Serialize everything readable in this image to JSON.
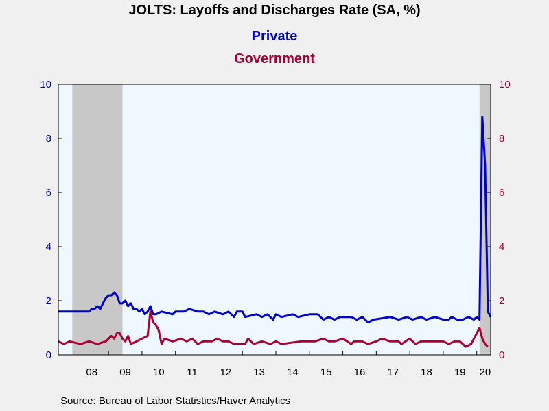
{
  "chart_data": {
    "type": "line",
    "title": "JOLTS: Layoffs and Discharges Rate (SA, %)",
    "source": "Source:  Bureau of Labor Statistics/Haver Analytics",
    "x_start": "2007-07",
    "x_end": "2020-06",
    "y_left_range": [
      0,
      10
    ],
    "y_right_range": [
      0,
      10
    ],
    "y_ticks": [
      "0",
      "2",
      "4",
      "6",
      "8",
      "10"
    ],
    "x_tick_labels": [
      {
        "label": "08",
        "date": "2008-07"
      },
      {
        "label": "09",
        "date": "2009-07"
      },
      {
        "label": "10",
        "date": "2010-07"
      },
      {
        "label": "11",
        "date": "2011-07"
      },
      {
        "label": "12",
        "date": "2012-07"
      },
      {
        "label": "13",
        "date": "2013-07"
      },
      {
        "label": "14",
        "date": "2014-07"
      },
      {
        "label": "15",
        "date": "2015-07"
      },
      {
        "label": "16",
        "date": "2016-07"
      },
      {
        "label": "17",
        "date": "2017-07"
      },
      {
        "label": "18",
        "date": "2018-07"
      },
      {
        "label": "19",
        "date": "2019-07"
      },
      {
        "label": "20",
        "date": "2020-04"
      }
    ],
    "recessions": [
      {
        "start": "2007-12",
        "end": "2009-06"
      },
      {
        "start": "2020-02",
        "end": "2020-06"
      }
    ],
    "grid": false,
    "series": [
      {
        "name": "Private",
        "axis": "left",
        "color": "#0000cc",
        "points": [
          [
            "2007-07",
            1.6
          ],
          [
            "2008-01",
            1.6
          ],
          [
            "2008-06",
            1.6
          ],
          [
            "2008-07",
            1.7
          ],
          [
            "2008-08",
            1.7
          ],
          [
            "2008-09",
            1.8
          ],
          [
            "2008-10",
            1.7
          ],
          [
            "2008-11",
            1.9
          ],
          [
            "2008-12",
            2.1
          ],
          [
            "2009-01",
            2.2
          ],
          [
            "2009-02",
            2.2
          ],
          [
            "2009-03",
            2.3
          ],
          [
            "2009-04",
            2.2
          ],
          [
            "2009-05",
            1.9
          ],
          [
            "2009-06",
            1.9
          ],
          [
            "2009-07",
            2.0
          ],
          [
            "2009-08",
            1.8
          ],
          [
            "2009-09",
            1.9
          ],
          [
            "2009-10",
            1.7
          ],
          [
            "2009-11",
            1.7
          ],
          [
            "2009-12",
            1.6
          ],
          [
            "2010-01",
            1.7
          ],
          [
            "2010-02",
            1.5
          ],
          [
            "2010-03",
            1.6
          ],
          [
            "2010-04",
            1.8
          ],
          [
            "2010-05",
            1.5
          ],
          [
            "2010-06",
            1.5
          ],
          [
            "2010-08",
            1.6
          ],
          [
            "2010-12",
            1.5
          ],
          [
            "2011-01",
            1.6
          ],
          [
            "2011-04",
            1.6
          ],
          [
            "2011-06",
            1.7
          ],
          [
            "2011-09",
            1.6
          ],
          [
            "2011-11",
            1.6
          ],
          [
            "2012-01",
            1.5
          ],
          [
            "2012-03",
            1.6
          ],
          [
            "2012-06",
            1.5
          ],
          [
            "2012-08",
            1.6
          ],
          [
            "2012-10",
            1.4
          ],
          [
            "2012-11",
            1.6
          ],
          [
            "2013-01",
            1.6
          ],
          [
            "2013-02",
            1.4
          ],
          [
            "2013-06",
            1.5
          ],
          [
            "2013-08",
            1.4
          ],
          [
            "2013-10",
            1.5
          ],
          [
            "2013-12",
            1.3
          ],
          [
            "2014-01",
            1.5
          ],
          [
            "2014-03",
            1.4
          ],
          [
            "2014-07",
            1.5
          ],
          [
            "2014-09",
            1.4
          ],
          [
            "2015-01",
            1.5
          ],
          [
            "2015-04",
            1.5
          ],
          [
            "2015-06",
            1.3
          ],
          [
            "2015-08",
            1.4
          ],
          [
            "2015-10",
            1.3
          ],
          [
            "2015-12",
            1.4
          ],
          [
            "2016-04",
            1.4
          ],
          [
            "2016-06",
            1.3
          ],
          [
            "2016-08",
            1.4
          ],
          [
            "2016-10",
            1.2
          ],
          [
            "2016-12",
            1.3
          ],
          [
            "2017-06",
            1.4
          ],
          [
            "2017-09",
            1.3
          ],
          [
            "2017-12",
            1.4
          ],
          [
            "2018-02",
            1.3
          ],
          [
            "2018-05",
            1.4
          ],
          [
            "2018-07",
            1.3
          ],
          [
            "2018-10",
            1.4
          ],
          [
            "2019-01",
            1.3
          ],
          [
            "2019-03",
            1.3
          ],
          [
            "2019-04",
            1.4
          ],
          [
            "2019-06",
            1.3
          ],
          [
            "2019-08",
            1.3
          ],
          [
            "2019-10",
            1.4
          ],
          [
            "2019-12",
            1.3
          ],
          [
            "2020-01",
            1.4
          ],
          [
            "2020-02",
            1.3
          ],
          [
            "2020-03",
            8.8
          ],
          [
            "2020-04",
            7.0
          ],
          [
            "2020-05",
            1.6
          ],
          [
            "2020-06",
            1.4
          ]
        ]
      },
      {
        "name": "Government",
        "axis": "right",
        "color": "#aa0033",
        "points": [
          [
            "2007-07",
            0.5
          ],
          [
            "2007-09",
            0.4
          ],
          [
            "2007-11",
            0.5
          ],
          [
            "2008-03",
            0.4
          ],
          [
            "2008-06",
            0.5
          ],
          [
            "2008-09",
            0.4
          ],
          [
            "2008-12",
            0.5
          ],
          [
            "2009-01",
            0.6
          ],
          [
            "2009-02",
            0.7
          ],
          [
            "2009-03",
            0.6
          ],
          [
            "2009-04",
            0.8
          ],
          [
            "2009-05",
            0.8
          ],
          [
            "2009-06",
            0.6
          ],
          [
            "2009-07",
            0.5
          ],
          [
            "2009-08",
            0.7
          ],
          [
            "2009-09",
            0.4
          ],
          [
            "2009-11",
            0.5
          ],
          [
            "2010-01",
            0.6
          ],
          [
            "2010-03",
            0.7
          ],
          [
            "2010-04",
            1.6
          ],
          [
            "2010-05",
            1.2
          ],
          [
            "2010-06",
            1.1
          ],
          [
            "2010-07",
            0.9
          ],
          [
            "2010-08",
            0.4
          ],
          [
            "2010-09",
            0.6
          ],
          [
            "2010-12",
            0.5
          ],
          [
            "2011-03",
            0.6
          ],
          [
            "2011-05",
            0.5
          ],
          [
            "2011-07",
            0.6
          ],
          [
            "2011-09",
            0.4
          ],
          [
            "2011-11",
            0.5
          ],
          [
            "2012-02",
            0.5
          ],
          [
            "2012-04",
            0.6
          ],
          [
            "2012-06",
            0.5
          ],
          [
            "2012-08",
            0.5
          ],
          [
            "2012-10",
            0.4
          ],
          [
            "2013-02",
            0.4
          ],
          [
            "2013-03",
            0.6
          ],
          [
            "2013-05",
            0.4
          ],
          [
            "2013-08",
            0.5
          ],
          [
            "2013-11",
            0.4
          ],
          [
            "2014-01",
            0.5
          ],
          [
            "2014-03",
            0.4
          ],
          [
            "2014-10",
            0.5
          ],
          [
            "2015-03",
            0.5
          ],
          [
            "2015-06",
            0.6
          ],
          [
            "2015-08",
            0.5
          ],
          [
            "2015-10",
            0.5
          ],
          [
            "2016-01",
            0.6
          ],
          [
            "2016-04",
            0.4
          ],
          [
            "2016-05",
            0.5
          ],
          [
            "2016-08",
            0.5
          ],
          [
            "2016-10",
            0.4
          ],
          [
            "2017-01",
            0.5
          ],
          [
            "2017-03",
            0.6
          ],
          [
            "2017-06",
            0.5
          ],
          [
            "2017-09",
            0.5
          ],
          [
            "2017-10",
            0.4
          ],
          [
            "2018-01",
            0.6
          ],
          [
            "2018-03",
            0.4
          ],
          [
            "2018-05",
            0.5
          ],
          [
            "2018-09",
            0.5
          ],
          [
            "2019-01",
            0.5
          ],
          [
            "2019-03",
            0.4
          ],
          [
            "2019-05",
            0.5
          ],
          [
            "2019-07",
            0.5
          ],
          [
            "2019-09",
            0.3
          ],
          [
            "2019-11",
            0.4
          ],
          [
            "2020-01",
            0.8
          ],
          [
            "2020-02",
            1.0
          ],
          [
            "2020-03",
            0.6
          ],
          [
            "2020-04",
            0.4
          ],
          [
            "2020-05",
            0.3
          ]
        ]
      }
    ]
  }
}
